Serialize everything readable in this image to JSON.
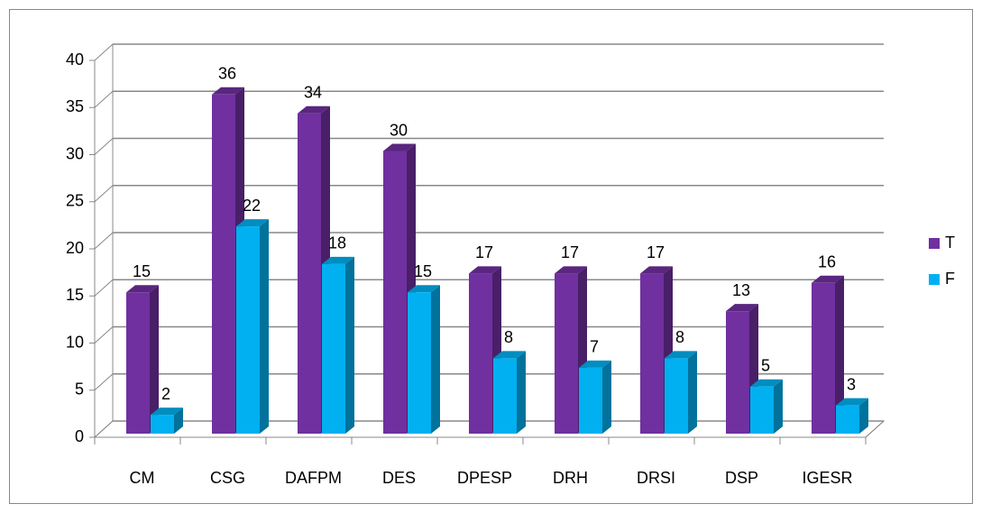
{
  "chart_data": {
    "type": "bar3d",
    "categories": [
      "CM",
      "CSG",
      "DAFPM",
      "DES",
      "DPESP",
      "DRH",
      "DRSI",
      "DSP",
      "IGESR"
    ],
    "series": [
      {
        "name": "T",
        "color": "#7030a0",
        "values": [
          15,
          36,
          34,
          30,
          17,
          17,
          17,
          13,
          16
        ]
      },
      {
        "name": "F",
        "color": "#00b0f0",
        "values": [
          2,
          22,
          18,
          15,
          8,
          7,
          8,
          5,
          3
        ]
      }
    ],
    "ylim": [
      0,
      40
    ],
    "yticks": [
      0,
      5,
      10,
      15,
      20,
      25,
      30,
      35,
      40
    ],
    "grid": true,
    "legend": "right"
  }
}
